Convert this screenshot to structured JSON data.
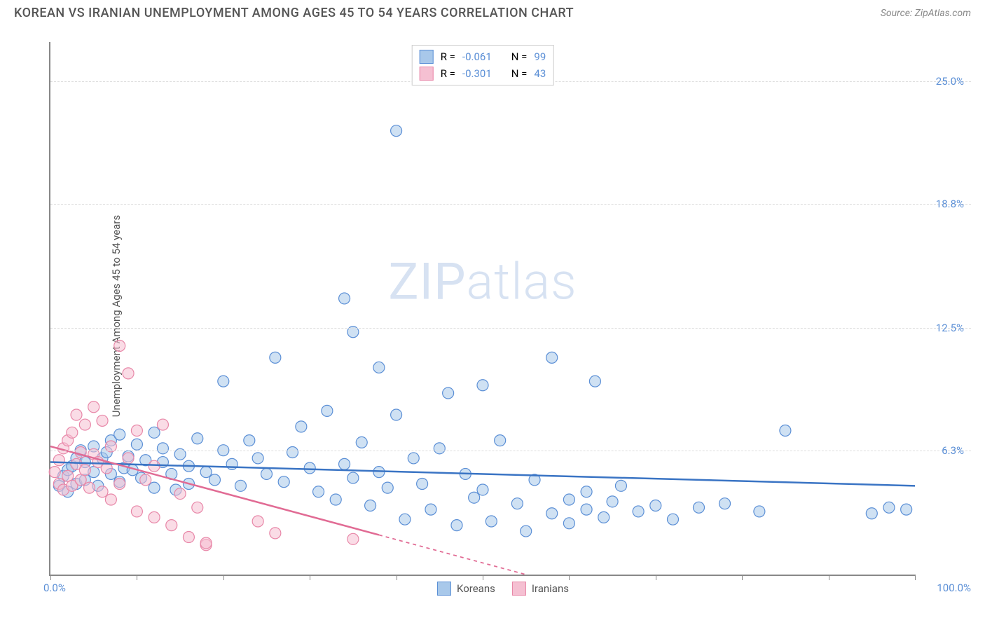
{
  "header": {
    "title": "KOREAN VS IRANIAN UNEMPLOYMENT AMONG AGES 45 TO 54 YEARS CORRELATION CHART",
    "source": "Source: ZipAtlas.com"
  },
  "watermark": {
    "zip": "ZIP",
    "atlas": "atlas"
  },
  "chart": {
    "type": "scatter",
    "y_label": "Unemployment Among Ages 45 to 54 years",
    "background_color": "#ffffff",
    "grid_color": "#dddddd",
    "axis_color": "#888888",
    "xlim": [
      0,
      100
    ],
    "ylim": [
      0,
      27
    ],
    "x_ticks": [
      0,
      10,
      20,
      30,
      40,
      50,
      60,
      70,
      80,
      90,
      100
    ],
    "y_grid": [
      {
        "v": 6.3,
        "label": "6.3%"
      },
      {
        "v": 12.5,
        "label": "12.5%"
      },
      {
        "v": 18.8,
        "label": "18.8%"
      },
      {
        "v": 25.0,
        "label": "25.0%"
      }
    ],
    "x_min_label": "0.0%",
    "x_max_label": "100.0%",
    "x_label_color": "#5b8fd6",
    "y_label_color": "#5b8fd6",
    "marker_radius": 8,
    "marker_opacity": 0.55,
    "trend_line_width": 2.5,
    "series": [
      {
        "name": "Koreans",
        "stroke": "#5b8fd6",
        "fill": "#a8c8ea",
        "trend_color": "#3a74c4",
        "trend": {
          "x1": 0,
          "y1": 5.7,
          "x2": 100,
          "y2": 4.5
        },
        "trend_solid_until": 100,
        "R": "-0.061",
        "N": "99",
        "points": [
          [
            1,
            4.5
          ],
          [
            1.5,
            5
          ],
          [
            2,
            4.2
          ],
          [
            2,
            5.3
          ],
          [
            2.5,
            5.5
          ],
          [
            3,
            4.6
          ],
          [
            3,
            5.9
          ],
          [
            3.5,
            6.3
          ],
          [
            4,
            4.8
          ],
          [
            4,
            5.7
          ],
          [
            5,
            5.2
          ],
          [
            5,
            6.5
          ],
          [
            5.5,
            4.5
          ],
          [
            6,
            5.9
          ],
          [
            6.5,
            6.2
          ],
          [
            7,
            5.1
          ],
          [
            7,
            6.8
          ],
          [
            8,
            4.7
          ],
          [
            8,
            7.1
          ],
          [
            8.5,
            5.4
          ],
          [
            9,
            6
          ],
          [
            9.5,
            5.3
          ],
          [
            10,
            6.6
          ],
          [
            10.5,
            4.9
          ],
          [
            11,
            5.8
          ],
          [
            12,
            4.4
          ],
          [
            12,
            7.2
          ],
          [
            13,
            5.7
          ],
          [
            13,
            6.4
          ],
          [
            14,
            5.1
          ],
          [
            14.5,
            4.3
          ],
          [
            15,
            6.1
          ],
          [
            16,
            5.5
          ],
          [
            16,
            4.6
          ],
          [
            17,
            6.9
          ],
          [
            18,
            5.2
          ],
          [
            19,
            4.8
          ],
          [
            20,
            6.3
          ],
          [
            20,
            9.8
          ],
          [
            21,
            5.6
          ],
          [
            22,
            4.5
          ],
          [
            23,
            6.8
          ],
          [
            24,
            5.9
          ],
          [
            25,
            5.1
          ],
          [
            26,
            11
          ],
          [
            27,
            4.7
          ],
          [
            28,
            6.2
          ],
          [
            29,
            7.5
          ],
          [
            30,
            5.4
          ],
          [
            31,
            4.2
          ],
          [
            32,
            8.3
          ],
          [
            33,
            3.8
          ],
          [
            34,
            14
          ],
          [
            34,
            5.6
          ],
          [
            35,
            4.9
          ],
          [
            35,
            12.3
          ],
          [
            36,
            6.7
          ],
          [
            37,
            3.5
          ],
          [
            38,
            10.5
          ],
          [
            38,
            5.2
          ],
          [
            39,
            4.4
          ],
          [
            40,
            22.5
          ],
          [
            40,
            8.1
          ],
          [
            41,
            2.8
          ],
          [
            42,
            5.9
          ],
          [
            43,
            4.6
          ],
          [
            44,
            3.3
          ],
          [
            45,
            6.4
          ],
          [
            46,
            9.2
          ],
          [
            47,
            2.5
          ],
          [
            48,
            5.1
          ],
          [
            49,
            3.9
          ],
          [
            50,
            9.6
          ],
          [
            50,
            4.3
          ],
          [
            51,
            2.7
          ],
          [
            52,
            6.8
          ],
          [
            54,
            3.6
          ],
          [
            55,
            2.2
          ],
          [
            56,
            4.8
          ],
          [
            58,
            11
          ],
          [
            58,
            3.1
          ],
          [
            60,
            3.8
          ],
          [
            60,
            2.6
          ],
          [
            62,
            4.2
          ],
          [
            62,
            3.3
          ],
          [
            63,
            9.8
          ],
          [
            64,
            2.9
          ],
          [
            65,
            3.7
          ],
          [
            66,
            4.5
          ],
          [
            68,
            3.2
          ],
          [
            70,
            3.5
          ],
          [
            72,
            2.8
          ],
          [
            75,
            3.4
          ],
          [
            78,
            3.6
          ],
          [
            82,
            3.2
          ],
          [
            85,
            7.3
          ],
          [
            95,
            3.1
          ],
          [
            97,
            3.4
          ],
          [
            99,
            3.3
          ]
        ]
      },
      {
        "name": "Iranians",
        "stroke": "#e887a8",
        "fill": "#f5c0d2",
        "trend_color": "#e16b94",
        "trend": {
          "x1": 0,
          "y1": 6.5,
          "x2": 55,
          "y2": 0
        },
        "trend_solid_until": 38,
        "R": "-0.301",
        "N": "43",
        "points": [
          [
            0.5,
            5.2
          ],
          [
            1,
            4.6
          ],
          [
            1,
            5.8
          ],
          [
            1.5,
            4.3
          ],
          [
            1.5,
            6.4
          ],
          [
            2,
            5
          ],
          [
            2,
            6.8
          ],
          [
            2.5,
            4.5
          ],
          [
            2.5,
            7.2
          ],
          [
            3,
            5.6
          ],
          [
            3,
            8.1
          ],
          [
            3.5,
            4.8
          ],
          [
            3.5,
            6.2
          ],
          [
            4,
            5.3
          ],
          [
            4,
            7.6
          ],
          [
            4.5,
            4.4
          ],
          [
            5,
            6.1
          ],
          [
            5,
            8.5
          ],
          [
            5.5,
            5.7
          ],
          [
            6,
            4.2
          ],
          [
            6,
            7.8
          ],
          [
            6.5,
            5.4
          ],
          [
            7,
            3.8
          ],
          [
            7,
            6.5
          ],
          [
            8,
            11.6
          ],
          [
            8,
            4.6
          ],
          [
            9,
            5.9
          ],
          [
            9,
            10.2
          ],
          [
            10,
            3.2
          ],
          [
            10,
            7.3
          ],
          [
            11,
            4.8
          ],
          [
            12,
            2.9
          ],
          [
            12,
            5.5
          ],
          [
            13,
            7.6
          ],
          [
            14,
            2.5
          ],
          [
            15,
            4.1
          ],
          [
            16,
            1.9
          ],
          [
            17,
            3.4
          ],
          [
            18,
            1.5
          ],
          [
            18,
            1.6
          ],
          [
            24,
            2.7
          ],
          [
            26,
            2.1
          ],
          [
            35,
            1.8
          ]
        ]
      }
    ],
    "legend_stat": {
      "R_label": "R =",
      "N_label": "N =",
      "text_color": "#555555",
      "value_color": "#5b8fd6"
    }
  }
}
